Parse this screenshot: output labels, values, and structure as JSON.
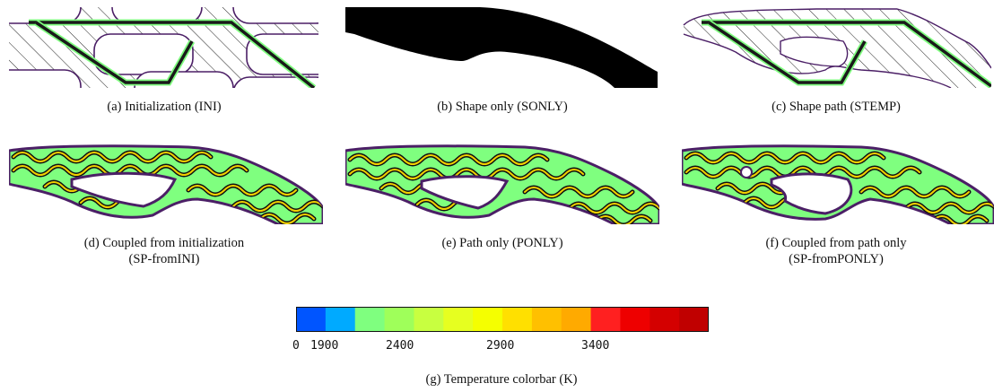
{
  "figure": {
    "panels": [
      {
        "id": "a",
        "caption": "(a) Initialization (INI)"
      },
      {
        "id": "b",
        "caption": "(b) Shape only (SONLY)"
      },
      {
        "id": "c",
        "caption": "(c) Shape path (STEMP)"
      },
      {
        "id": "d",
        "caption_line1": "(d) Coupled from initialization",
        "caption_line2": "(SP-fromINI)"
      },
      {
        "id": "e",
        "caption": "(e) Path only (PONLY)"
      },
      {
        "id": "f",
        "caption_line1": "(f) Coupled from path only",
        "caption_line2": "(SP-fromPONLY)"
      }
    ],
    "colorbar": {
      "caption": "(g) Temperature colorbar (K)",
      "ticks": [
        "0",
        "1900",
        "2400",
        "2900",
        "3400"
      ],
      "colors": [
        "#0055ff",
        "#00aaff",
        "#7fff7f",
        "#9fff5a",
        "#c8ff40",
        "#e6ff20",
        "#f5ff00",
        "#ffe000",
        "#ffc000",
        "#ffaa00",
        "#ff2020",
        "#ee0000",
        "#d40000",
        "#c00000"
      ]
    },
    "colors": {
      "boundary": "#4b1f66",
      "path": "#1a1a1a",
      "hot": "#f0d000",
      "cool": "#7fff7f",
      "solid": "#000000"
    }
  }
}
